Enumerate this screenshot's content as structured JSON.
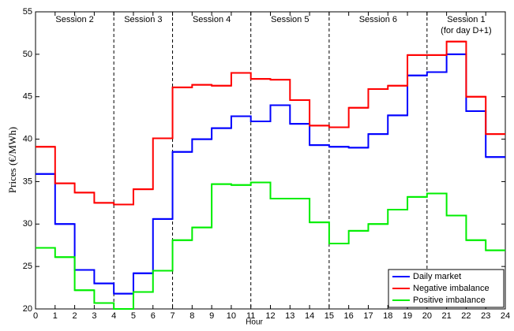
{
  "chart_data": {
    "type": "step",
    "x_label": "Hour",
    "y_label": "Prices (€/MWh)",
    "x": [
      0,
      1,
      2,
      3,
      4,
      5,
      6,
      7,
      8,
      9,
      10,
      11,
      12,
      13,
      14,
      15,
      16,
      17,
      18,
      19,
      20,
      21,
      22,
      23
    ],
    "xlim": [
      0,
      24
    ],
    "xticks": [
      0,
      1,
      2,
      3,
      4,
      5,
      6,
      7,
      8,
      9,
      10,
      11,
      12,
      13,
      14,
      15,
      16,
      17,
      18,
      19,
      20,
      21,
      22,
      23,
      24
    ],
    "ylim": [
      20,
      55
    ],
    "yticks": [
      20,
      25,
      30,
      35,
      40,
      45,
      50,
      55
    ],
    "legend_position": "lower right",
    "series": [
      {
        "name": "Daily market",
        "color": "#0000ff",
        "values": [
          35.9,
          30.0,
          24.6,
          23.0,
          21.8,
          24.2,
          30.6,
          38.5,
          40.0,
          41.3,
          42.7,
          42.1,
          44.0,
          41.8,
          39.3,
          39.1,
          39.0,
          40.6,
          42.8,
          47.5,
          47.9,
          50.0,
          43.3,
          37.9
        ]
      },
      {
        "name": "Negative imbalance",
        "color": "#ff0000",
        "values": [
          39.1,
          34.8,
          33.7,
          32.5,
          32.3,
          34.1,
          40.1,
          46.1,
          46.4,
          46.3,
          47.8,
          47.1,
          47.0,
          44.6,
          41.6,
          41.4,
          43.7,
          45.9,
          46.3,
          49.9,
          49.9,
          51.5,
          45.0,
          40.6
        ]
      },
      {
        "name": "Positive imbalance",
        "color": "#00ee00",
        "values": [
          27.2,
          26.1,
          22.2,
          20.7,
          20.0,
          22.0,
          24.5,
          28.1,
          29.6,
          34.7,
          34.6,
          34.9,
          33.0,
          33.0,
          30.2,
          27.7,
          29.2,
          30.0,
          31.7,
          33.2,
          33.6,
          31.0,
          28.1,
          26.9
        ]
      }
    ],
    "session_bounds": [
      4,
      7,
      11,
      15,
      20
    ],
    "sessions": [
      {
        "label": "Session 2"
      },
      {
        "label": "Session 3"
      },
      {
        "label": "Session 4"
      },
      {
        "label": "Session 5"
      },
      {
        "label": "Session 6"
      },
      {
        "label": "Session 1",
        "sublabel": "(for day D+1)"
      }
    ]
  }
}
